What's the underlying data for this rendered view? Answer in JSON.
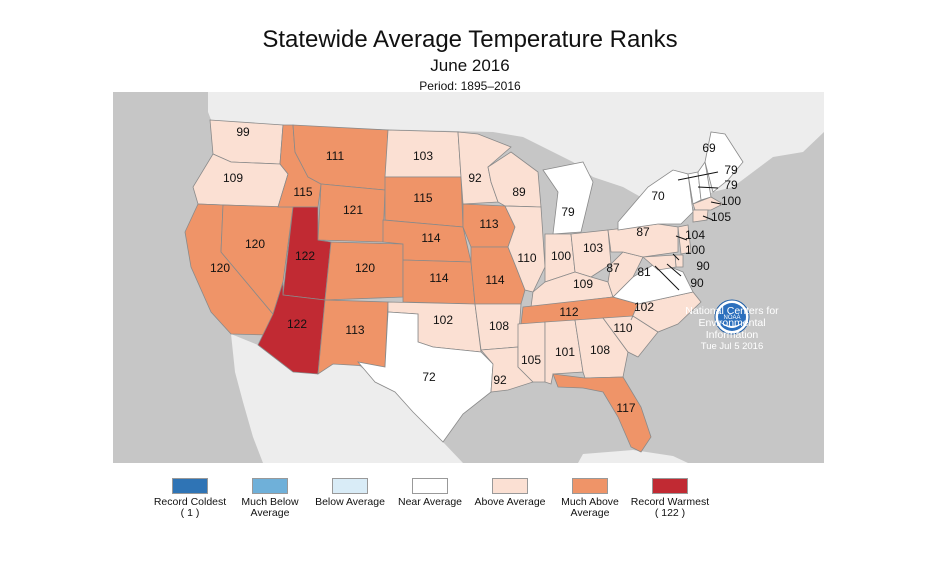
{
  "title": "Statewide Average Temperature Ranks",
  "subtitle": "June 2016",
  "period": "Period: 1895–2016",
  "colors": {
    "record_coldest": "#2f74b5",
    "much_below": "#6fb0d9",
    "below": "#d9ecf7",
    "near": "#ffffff",
    "above": "#fbe0d3",
    "much_above": "#ef9468",
    "record_warmest": "#c12a33",
    "water": "#c6c6c6",
    "land_other": "#ededed"
  },
  "states": [
    {
      "code": "WA",
      "rank": "99",
      "category": "above"
    },
    {
      "code": "OR",
      "rank": "109",
      "category": "above"
    },
    {
      "code": "CA",
      "rank": "120",
      "category": "much_above"
    },
    {
      "code": "NV",
      "rank": "120",
      "category": "much_above"
    },
    {
      "code": "ID",
      "rank": "115",
      "category": "much_above"
    },
    {
      "code": "MT",
      "rank": "111",
      "category": "much_above"
    },
    {
      "code": "WY",
      "rank": "121",
      "category": "much_above"
    },
    {
      "code": "UT",
      "rank": "122",
      "category": "record_warmest"
    },
    {
      "code": "AZ",
      "rank": "122",
      "category": "record_warmest"
    },
    {
      "code": "CO",
      "rank": "120",
      "category": "much_above"
    },
    {
      "code": "NM",
      "rank": "113",
      "category": "much_above"
    },
    {
      "code": "ND",
      "rank": "103",
      "category": "above"
    },
    {
      "code": "SD",
      "rank": "115",
      "category": "much_above"
    },
    {
      "code": "NE",
      "rank": "114",
      "category": "much_above"
    },
    {
      "code": "KS",
      "rank": "114",
      "category": "much_above"
    },
    {
      "code": "OK",
      "rank": "102",
      "category": "above"
    },
    {
      "code": "TX",
      "rank": "72",
      "category": "near"
    },
    {
      "code": "MN",
      "rank": "92",
      "category": "above"
    },
    {
      "code": "IA",
      "rank": "113",
      "category": "much_above"
    },
    {
      "code": "MO",
      "rank": "114",
      "category": "much_above"
    },
    {
      "code": "AR",
      "rank": "108",
      "category": "above"
    },
    {
      "code": "LA",
      "rank": "92",
      "category": "above"
    },
    {
      "code": "WI",
      "rank": "89",
      "category": "above"
    },
    {
      "code": "IL",
      "rank": "110",
      "category": "above"
    },
    {
      "code": "MI",
      "rank": "79",
      "category": "near"
    },
    {
      "code": "IN",
      "rank": "100",
      "category": "above"
    },
    {
      "code": "OH",
      "rank": "103",
      "category": "above"
    },
    {
      "code": "KY",
      "rank": "109",
      "category": "above"
    },
    {
      "code": "TN",
      "rank": "112",
      "category": "much_above"
    },
    {
      "code": "MS",
      "rank": "105",
      "category": "above"
    },
    {
      "code": "AL",
      "rank": "101",
      "category": "above"
    },
    {
      "code": "GA",
      "rank": "108",
      "category": "above"
    },
    {
      "code": "FL",
      "rank": "117",
      "category": "much_above"
    },
    {
      "code": "SC",
      "rank": "110",
      "category": "above"
    },
    {
      "code": "NC",
      "rank": "102",
      "category": "above"
    },
    {
      "code": "VA",
      "rank": "81",
      "category": "near"
    },
    {
      "code": "WV",
      "rank": "87",
      "category": "above"
    },
    {
      "code": "PA",
      "rank": "87",
      "category": "above"
    },
    {
      "code": "NY",
      "rank": "70",
      "category": "near"
    },
    {
      "code": "ME",
      "rank": "69",
      "category": "near"
    },
    {
      "code": "NH",
      "rank": "79",
      "category": "near"
    },
    {
      "code": "VT",
      "rank": "79",
      "category": "near"
    },
    {
      "code": "MA",
      "rank": "100",
      "category": "above"
    },
    {
      "code": "CT",
      "rank": "105",
      "category": "above"
    },
    {
      "code": "NJ",
      "rank": "104",
      "category": "above"
    },
    {
      "code": "DE",
      "rank": "100",
      "category": "above"
    },
    {
      "code": "MD",
      "rank": "90",
      "category": "above"
    },
    {
      "code": "DC",
      "rank": "90",
      "category": "above"
    }
  ],
  "legend": [
    {
      "label": "Record Coldest",
      "sub": "( 1 )",
      "color": "#2f74b5"
    },
    {
      "label": "Much Below Average",
      "sub": "",
      "color": "#6fb0d9"
    },
    {
      "label": "Below Average",
      "sub": "",
      "color": "#d9ecf7"
    },
    {
      "label": "Near Average",
      "sub": "",
      "color": "#ffffff"
    },
    {
      "label": "Above Average",
      "sub": "",
      "color": "#fbe0d3"
    },
    {
      "label": "Much Above Average",
      "sub": "",
      "color": "#ef9468"
    },
    {
      "label": "Record Warmest",
      "sub": "( 122 )",
      "color": "#c12a33"
    }
  ],
  "noaa": {
    "logo_text": "NOAA",
    "org": "National Centers for Environmental Information",
    "date": "Tue Jul  5 2016"
  }
}
